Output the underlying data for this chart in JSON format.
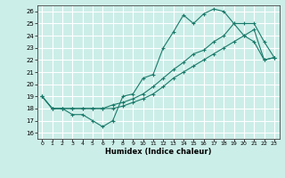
{
  "title": "",
  "xlabel": "Humidex (Indice chaleur)",
  "ylabel": "",
  "bg_color": "#cceee8",
  "grid_color": "#ffffff",
  "line_color": "#1a7a6a",
  "xlim": [
    -0.5,
    23.5
  ],
  "ylim": [
    15.5,
    26.5
  ],
  "xticks": [
    0,
    1,
    2,
    3,
    4,
    5,
    6,
    7,
    8,
    9,
    10,
    11,
    12,
    13,
    14,
    15,
    16,
    17,
    18,
    19,
    20,
    21,
    22,
    23
  ],
  "yticks": [
    16,
    17,
    18,
    19,
    20,
    21,
    22,
    23,
    24,
    25,
    26
  ],
  "series": [
    {
      "x": [
        0,
        1,
        2,
        3,
        4,
        5,
        6,
        7,
        8,
        9,
        10,
        11,
        12,
        13,
        14,
        15,
        16,
        17,
        18,
        19,
        20,
        21,
        22,
        23
      ],
      "y": [
        19,
        18,
        18,
        17.5,
        17.5,
        17,
        16.5,
        17,
        19,
        19.2,
        20.5,
        20.8,
        23,
        24.3,
        25.7,
        25.0,
        25.8,
        26.2,
        26.0,
        25.0,
        24.0,
        23.5,
        22.0,
        22.2
      ]
    },
    {
      "x": [
        0,
        1,
        2,
        3,
        4,
        5,
        6,
        7,
        8,
        9,
        10,
        11,
        12,
        13,
        14,
        15,
        16,
        17,
        18,
        19,
        20,
        21,
        22,
        23
      ],
      "y": [
        19,
        18,
        18,
        18,
        18,
        18,
        18,
        18.3,
        18.5,
        18.8,
        19.2,
        19.8,
        20.5,
        21.2,
        21.8,
        22.5,
        22.8,
        23.5,
        24.0,
        25.0,
        25.0,
        25.0,
        23.5,
        22.2
      ]
    },
    {
      "x": [
        0,
        1,
        2,
        3,
        4,
        5,
        6,
        7,
        8,
        9,
        10,
        11,
        12,
        13,
        14,
        15,
        16,
        17,
        18,
        19,
        20,
        21,
        22,
        23
      ],
      "y": [
        19,
        18,
        18,
        18,
        18,
        18,
        18,
        18.0,
        18.2,
        18.5,
        18.8,
        19.2,
        19.8,
        20.5,
        21.0,
        21.5,
        22.0,
        22.5,
        23.0,
        23.5,
        24.0,
        24.5,
        22.0,
        22.2
      ]
    }
  ]
}
